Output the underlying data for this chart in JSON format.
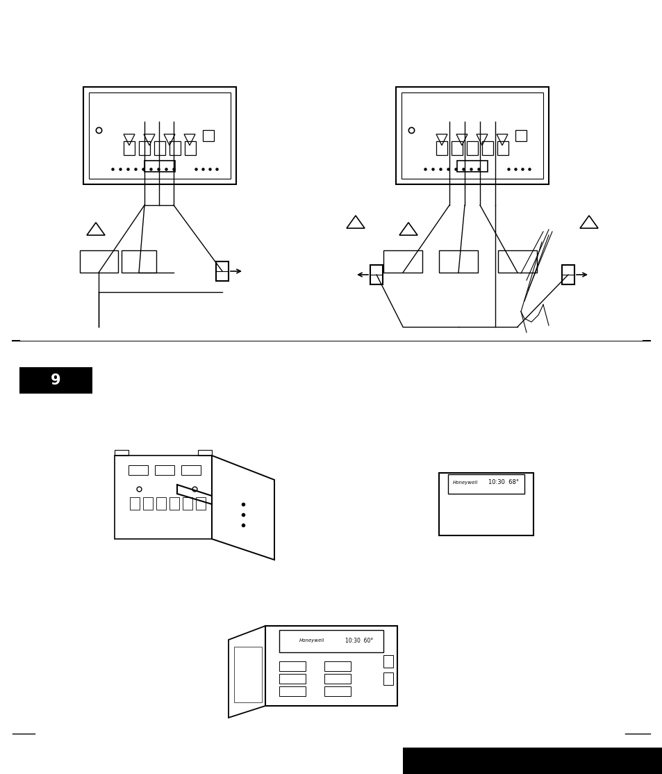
{
  "bg_color": "#ffffff",
  "page_width": 9.54,
  "page_height": 11.13,
  "step_label": "9",
  "step_label_bg": "#000000",
  "step_label_color": "#ffffff",
  "footer_bg": "#000000"
}
